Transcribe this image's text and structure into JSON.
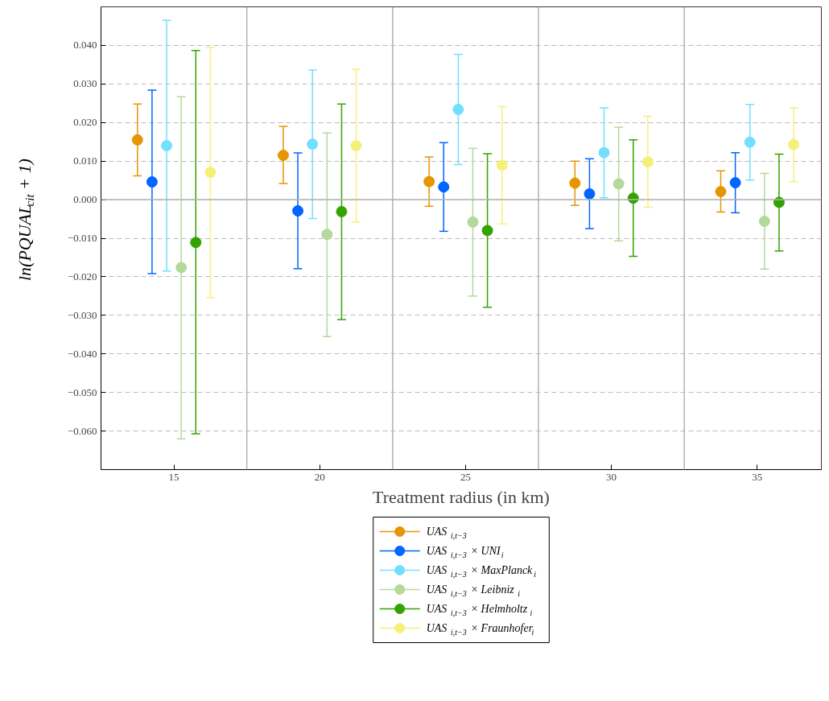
{
  "chart_data": {
    "type": "scatter",
    "xlabel": "Treatment radius (in km)",
    "ylabel": "ln(PQUAL$_{cit}$ + 1)",
    "xlim": [
      12.5,
      37.2
    ],
    "xticks": [
      15,
      20,
      25,
      30,
      35
    ],
    "ylim": [
      -0.07,
      0.05
    ],
    "yticks": [
      {
        "value": -0.06,
        "label": "−0.060"
      },
      {
        "value": -0.05,
        "label": "−0.050"
      },
      {
        "value": -0.04,
        "label": "−0.040"
      },
      {
        "value": -0.03,
        "label": "−0.030"
      },
      {
        "value": -0.02,
        "label": "−0.020"
      },
      {
        "value": -0.01,
        "label": "−0.010"
      },
      {
        "value": 0,
        "label": "0.000"
      },
      {
        "value": 0.01,
        "label": "0.010"
      },
      {
        "value": 0.02,
        "label": "0.020"
      },
      {
        "value": 0.03,
        "label": "0.030"
      },
      {
        "value": 0.04,
        "label": "0.040"
      }
    ],
    "grid": "y",
    "legend": "bottom",
    "marker": "circle",
    "ref_lines": [
      {
        "axis": "y",
        "value": 0,
        "color": "#b3b3b3"
      },
      {
        "axis": "x",
        "value": 17.5,
        "color": "#b3b3b3"
      },
      {
        "axis": "x",
        "value": 22.5,
        "color": "#b3b3b3"
      },
      {
        "axis": "x",
        "value": 27.5,
        "color": "#b3b3b3"
      },
      {
        "axis": "x",
        "value": 32.5,
        "color": "#b3b3b3"
      }
    ],
    "series": [
      {
        "name": "UAS$_{i,t−3}$",
        "color": "#e69500",
        "x": [
          13.75,
          18.75,
          23.75,
          28.75,
          33.75
        ],
        "values": [
          0.0155,
          0.0115,
          0.0047,
          0.0043,
          0.0021
        ],
        "errors": [
          [
            0.0062,
            0.0248
          ],
          [
            0.0042,
            0.019
          ],
          [
            -0.0017,
            0.0111
          ],
          [
            -0.0015,
            0.01
          ],
          [
            -0.0032,
            0.0075
          ]
        ]
      },
      {
        "name": "UAS$_{i,t−3}$ × UNI$_{i}$",
        "color": "#0066ff",
        "x": [
          14.25,
          19.25,
          24.25,
          29.25,
          34.25
        ],
        "values": [
          0.0046,
          -0.0029,
          0.0033,
          0.0015,
          0.0044
        ],
        "errors": [
          [
            -0.0192,
            0.0284
          ],
          [
            -0.0179,
            0.0121
          ],
          [
            -0.0082,
            0.0148
          ],
          [
            -0.0075,
            0.0106
          ],
          [
            -0.0034,
            0.0122
          ]
        ]
      },
      {
        "name": "UAS$_{i,t−3}$ × MaxPlanck$_{i}$",
        "color": "#73dfff",
        "x": [
          14.75,
          19.75,
          24.75,
          29.75,
          34.75
        ],
        "values": [
          0.014,
          0.0144,
          0.0234,
          0.0122,
          0.0149
        ],
        "errors": [
          [
            -0.0185,
            0.0465
          ],
          [
            -0.0049,
            0.0336
          ],
          [
            0.0091,
            0.0377
          ],
          [
            0.0005,
            0.0238
          ],
          [
            0.0051,
            0.0247
          ]
        ]
      },
      {
        "name": "UAS$_{i,t−3}$ × Leibniz$_{i}$",
        "color": "#b3d99c",
        "x": [
          15.25,
          20.25,
          25.25,
          30.25,
          35.25
        ],
        "values": [
          -0.0176,
          -0.009,
          -0.0058,
          0.0041,
          -0.0056
        ],
        "errors": [
          [
            -0.062,
            0.0267
          ],
          [
            -0.0355,
            0.0173
          ],
          [
            -0.025,
            0.0133
          ],
          [
            -0.0107,
            0.0188
          ],
          [
            -0.018,
            0.0068
          ]
        ]
      },
      {
        "name": "UAS$_{i,t−3}$ × Helmholtz$_{i}$",
        "color": "#33a300",
        "x": [
          15.75,
          20.75,
          25.75,
          30.75,
          35.75
        ],
        "values": [
          -0.0111,
          -0.0031,
          -0.008,
          0.0004,
          -0.0007
        ],
        "errors": [
          [
            -0.0607,
            0.0387
          ],
          [
            -0.0311,
            0.0248
          ],
          [
            -0.0279,
            0.0119
          ],
          [
            -0.0147,
            0.0155
          ],
          [
            -0.0133,
            0.0118
          ]
        ]
      },
      {
        "name": "UAS$_{i,t−3}$ × Fraunhofer$_{i}$",
        "color": "#f5f07a",
        "x": [
          16.25,
          21.25,
          26.25,
          31.25,
          36.25
        ],
        "values": [
          0.0071,
          0.014,
          0.0089,
          0.0098,
          0.0143
        ],
        "errors": [
          [
            -0.0254,
            0.0395
          ],
          [
            -0.0058,
            0.0338
          ],
          [
            -0.0063,
            0.0241
          ],
          [
            -0.002,
            0.0216
          ],
          [
            0.0046,
            0.0238
          ]
        ]
      }
    ]
  }
}
